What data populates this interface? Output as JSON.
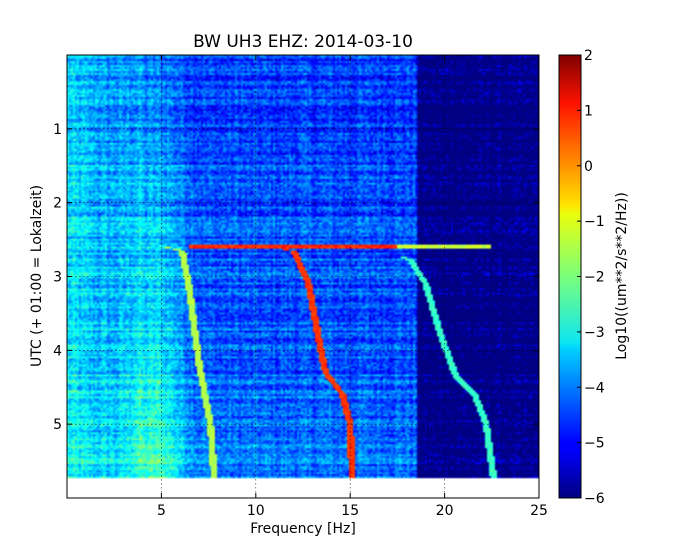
{
  "chart_data": {
    "type": "heatmap",
    "title": "BW UH3 EHZ: 2014-03-10",
    "xlabel": "Frequency [Hz]",
    "ylabel": "UTC (+ 01:00 = Lokalzeit)",
    "colorbar_label": "Log10((um**2/s**2/Hz))",
    "xlim": [
      0,
      25
    ],
    "ylim_top_to_bottom": [
      0,
      6
    ],
    "x_ticks": [
      5,
      10,
      15,
      20,
      25
    ],
    "y_ticks": [
      1,
      2,
      3,
      4,
      5
    ],
    "colorbar_range": [
      -6,
      2
    ],
    "colorbar_ticks": [
      2,
      1,
      0,
      -1,
      -2,
      -3,
      -4,
      -5,
      -6
    ],
    "colormap": "jet",
    "grid": true,
    "data_end_time": 5.72,
    "features": {
      "background_level": -4.6,
      "low_frequency_energy_hz": [
        0.5,
        4.0
      ],
      "microseism_peak_hz": 4.7,
      "strong_event_time": 2.6,
      "event_band_hz": [
        6.5,
        17.5
      ],
      "secondary_event_band_hz": [
        17.5,
        22.5
      ],
      "drop_off_frequency_hz": 18.5,
      "sweeps": [
        {
          "name": "sweep-a",
          "level": -1.6,
          "points": [
            [
              5.2,
              2.6
            ],
            [
              6.1,
              2.65
            ],
            [
              6.5,
              3.2
            ],
            [
              7.0,
              4.2
            ],
            [
              7.6,
              5.0
            ],
            [
              7.8,
              5.72
            ]
          ]
        },
        {
          "name": "sweep-b",
          "level": 0.6,
          "points": [
            [
              10.6,
              2.6
            ],
            [
              12.0,
              2.65
            ],
            [
              12.8,
              3.1
            ],
            [
              13.3,
              3.8
            ],
            [
              13.7,
              4.3
            ],
            [
              14.6,
              4.6
            ],
            [
              15.0,
              5.0
            ],
            [
              15.1,
              5.72
            ]
          ]
        },
        {
          "name": "sweep-c",
          "level": -2.6,
          "points": [
            [
              17.6,
              2.72
            ],
            [
              18.2,
              2.78
            ],
            [
              19.0,
              3.1
            ],
            [
              19.8,
              3.8
            ],
            [
              20.6,
              4.35
            ],
            [
              21.6,
              4.6
            ],
            [
              22.2,
              5.0
            ],
            [
              22.6,
              5.72
            ]
          ]
        }
      ]
    }
  }
}
